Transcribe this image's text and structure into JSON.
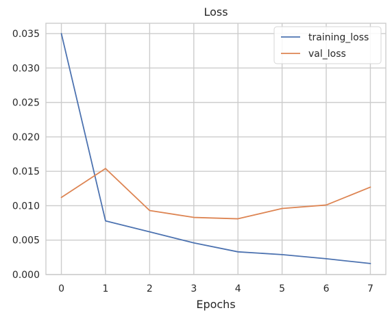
{
  "chart_data": {
    "type": "line",
    "title": "Loss",
    "xlabel": "Epochs",
    "ylabel": "",
    "x": [
      0,
      1,
      2,
      3,
      4,
      5,
      6,
      7
    ],
    "xlim": [
      -0.35,
      7.35
    ],
    "ylim": [
      0,
      0.0365
    ],
    "xticks": [
      0,
      1,
      2,
      3,
      4,
      5,
      6,
      7
    ],
    "xtick_labels": [
      "0",
      "1",
      "2",
      "3",
      "4",
      "5",
      "6",
      "7"
    ],
    "yticks": [
      0,
      0.005,
      0.01,
      0.015,
      0.02,
      0.025,
      0.03,
      0.035
    ],
    "ytick_labels": [
      "0.000",
      "0.005",
      "0.010",
      "0.015",
      "0.020",
      "0.025",
      "0.030",
      "0.035"
    ],
    "grid": true,
    "legend_position": "top-right",
    "series": [
      {
        "name": "training_loss",
        "color": "#4c72b0",
        "values": [
          0.035,
          0.0078,
          0.0062,
          0.0046,
          0.0033,
          0.0029,
          0.0023,
          0.0016
        ]
      },
      {
        "name": "val_loss",
        "color": "#dd8452",
        "values": [
          0.0112,
          0.0154,
          0.0093,
          0.0083,
          0.0081,
          0.0096,
          0.0101,
          0.0127
        ]
      }
    ]
  }
}
